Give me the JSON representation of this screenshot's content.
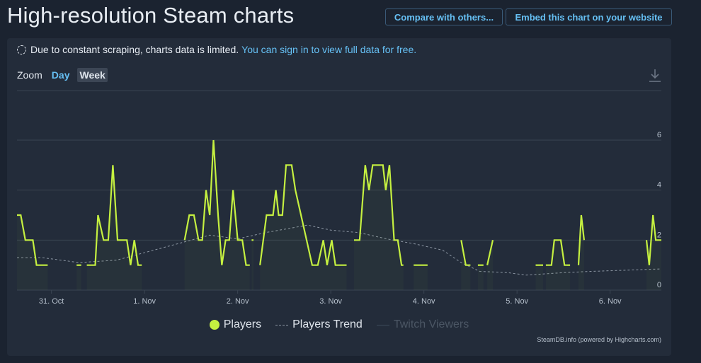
{
  "page_title": "High-resolution Steam charts",
  "header_buttons": {
    "compare": "Compare with others...",
    "embed": "Embed this chart on your website"
  },
  "notice": {
    "text": "Due to constant scraping, charts data is limited.",
    "link": "You can sign in to view full data for free."
  },
  "zoom": {
    "label": "Zoom",
    "options": [
      "Day",
      "Week"
    ],
    "selected": "Week"
  },
  "icons": {
    "download": "download-icon",
    "loading": "dashed-circle-icon"
  },
  "legend": {
    "players": "Players",
    "trend": "Players Trend",
    "twitch": "Twitch Viewers"
  },
  "credit": "SteamDB.info (powered by Highcharts.com)",
  "colors": {
    "players": "#c5f040",
    "trend": "#8c96a3",
    "link": "#66c0f4",
    "twitch_disabled": "#4b5664"
  },
  "chart_data": {
    "type": "line",
    "x_unit": "days since 30 Oct (00:00)",
    "xlim": [
      0.63,
      7.55
    ],
    "ylim": [
      0,
      6
    ],
    "y_ticks": [
      0,
      2,
      4,
      6
    ],
    "x_ticks": [
      {
        "x": 1,
        "label": "31. Oct"
      },
      {
        "x": 2,
        "label": "1. Nov"
      },
      {
        "x": 3,
        "label": "2. Nov"
      },
      {
        "x": 4,
        "label": "3. Nov"
      },
      {
        "x": 5,
        "label": "4. Nov"
      },
      {
        "x": 6,
        "label": "5. Nov"
      },
      {
        "x": 7,
        "label": "6. Nov"
      }
    ],
    "grid": true,
    "legend_position": "bottom-center",
    "series": [
      {
        "name": "Players",
        "segments": [
          [
            [
              0.63,
              3
            ],
            [
              0.67,
              3
            ],
            [
              0.72,
              2
            ],
            [
              0.8,
              2
            ],
            [
              0.84,
              1
            ],
            [
              0.96,
              1
            ]
          ],
          [
            [
              1.27,
              1
            ],
            [
              1.32,
              1
            ]
          ],
          [
            [
              1.38,
              1
            ],
            [
              1.47,
              1
            ],
            [
              1.5,
              3
            ],
            [
              1.56,
              2
            ],
            [
              1.61,
              2
            ],
            [
              1.66,
              5
            ],
            [
              1.71,
              2
            ],
            [
              1.81,
              2
            ],
            [
              1.85,
              1
            ],
            [
              1.89,
              2
            ],
            [
              1.93,
              1
            ],
            [
              1.97,
              1
            ]
          ],
          [
            [
              2.43,
              2
            ],
            [
              2.48,
              3
            ],
            [
              2.53,
              3
            ],
            [
              2.58,
              2
            ],
            [
              2.62,
              2
            ],
            [
              2.66,
              4
            ],
            [
              2.7,
              3
            ],
            [
              2.74,
              6
            ],
            [
              2.79,
              3
            ],
            [
              2.83,
              1
            ],
            [
              2.87,
              2
            ],
            [
              2.91,
              2
            ],
            [
              2.95,
              4
            ],
            [
              3.0,
              2
            ],
            [
              3.05,
              2
            ],
            [
              3.09,
              1
            ],
            [
              3.13,
              1
            ]
          ],
          [
            [
              3.15,
              2
            ],
            [
              3.17,
              2
            ]
          ],
          [
            [
              3.24,
              1
            ],
            [
              3.31,
              3
            ],
            [
              3.38,
              3
            ],
            [
              3.41,
              4
            ],
            [
              3.44,
              3
            ],
            [
              3.48,
              3
            ],
            [
              3.52,
              5
            ],
            [
              3.58,
              5
            ],
            [
              3.62,
              4
            ],
            [
              3.68,
              3
            ],
            [
              3.74,
              2
            ],
            [
              3.8,
              1
            ],
            [
              3.86,
              1
            ],
            [
              3.92,
              2
            ],
            [
              3.96,
              1
            ],
            [
              4.01,
              2
            ],
            [
              4.05,
              1
            ],
            [
              4.17,
              1
            ]
          ],
          [
            [
              4.25,
              2
            ],
            [
              4.31,
              2
            ],
            [
              4.37,
              5
            ],
            [
              4.41,
              4
            ],
            [
              4.45,
              5
            ],
            [
              4.52,
              5
            ],
            [
              4.56,
              5
            ],
            [
              4.59,
              4
            ],
            [
              4.63,
              5
            ],
            [
              4.68,
              2
            ],
            [
              4.72,
              2
            ],
            [
              4.76,
              1
            ],
            [
              4.78,
              1
            ]
          ],
          [
            [
              4.89,
              1
            ],
            [
              5.04,
              1
            ]
          ],
          [
            [
              5.4,
              2
            ],
            [
              5.45,
              1
            ],
            [
              5.5,
              1
            ]
          ],
          [
            [
              5.58,
              1
            ],
            [
              5.64,
              1
            ]
          ],
          [
            [
              5.68,
              1
            ],
            [
              5.74,
              2
            ]
          ],
          [
            [
              6.2,
              1
            ],
            [
              6.28,
              1
            ]
          ],
          [
            [
              6.31,
              1
            ],
            [
              6.37,
              1
            ],
            [
              6.4,
              2
            ],
            [
              6.47,
              2
            ],
            [
              6.51,
              1
            ],
            [
              6.53,
              1
            ]
          ],
          [
            [
              6.53,
              1
            ],
            [
              6.57,
              1
            ]
          ],
          [
            [
              6.66,
              1
            ],
            [
              6.69,
              3
            ],
            [
              6.72,
              2
            ]
          ],
          [
            [
              7.39,
              2
            ],
            [
              7.42,
              1
            ],
            [
              7.46,
              3
            ],
            [
              7.49,
              2
            ],
            [
              7.55,
              2
            ]
          ]
        ]
      },
      {
        "name": "Players Trend",
        "points": [
          [
            0.63,
            1.3
          ],
          [
            0.9,
            1.3
          ],
          [
            1.3,
            1.1
          ],
          [
            1.7,
            1.2
          ],
          [
            2.1,
            1.6
          ],
          [
            2.4,
            1.9
          ],
          [
            2.7,
            2.2
          ],
          [
            3.0,
            2.05
          ],
          [
            3.3,
            2.3
          ],
          [
            3.6,
            2.5
          ],
          [
            3.75,
            2.6
          ],
          [
            4.0,
            2.4
          ],
          [
            4.3,
            2.3
          ],
          [
            4.6,
            2.05
          ],
          [
            4.9,
            1.85
          ],
          [
            5.2,
            1.6
          ],
          [
            5.4,
            1.1
          ],
          [
            5.6,
            0.75
          ],
          [
            5.9,
            0.7
          ],
          [
            6.1,
            0.6
          ],
          [
            6.3,
            0.65
          ],
          [
            6.5,
            0.7
          ],
          [
            6.8,
            0.75
          ],
          [
            7.2,
            0.8
          ],
          [
            7.55,
            0.85
          ]
        ]
      }
    ]
  }
}
